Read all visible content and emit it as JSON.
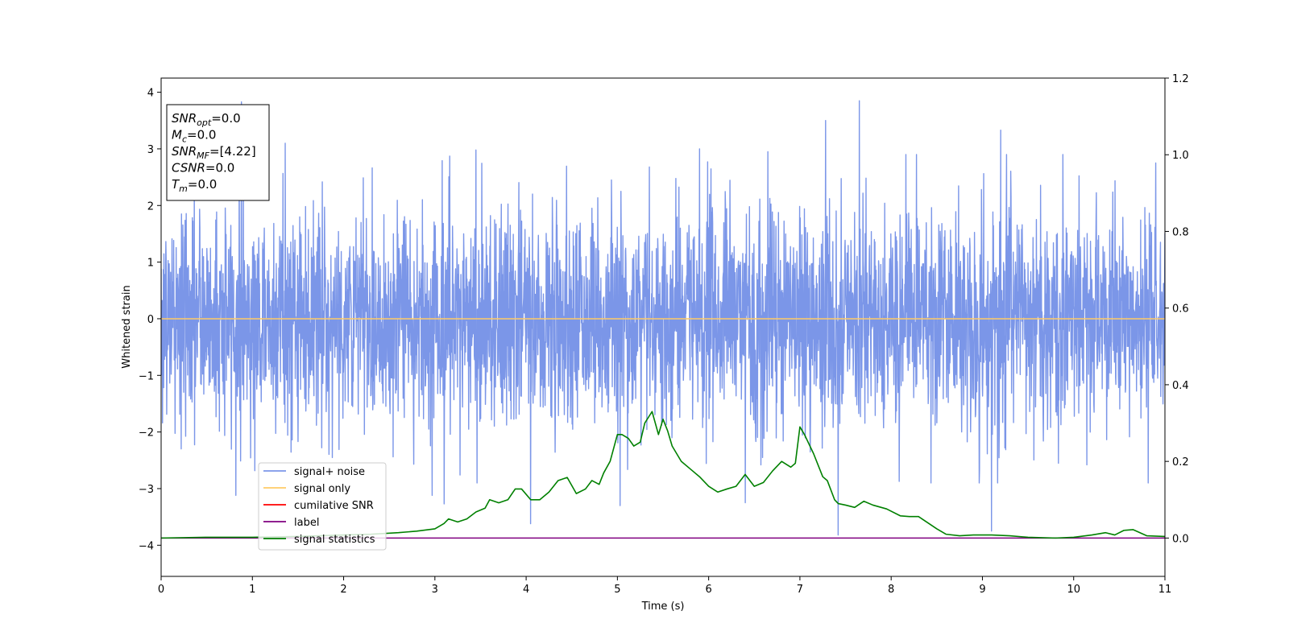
{
  "chart_data": {
    "type": "line",
    "xlabel": "Time (s)",
    "ylabel": "Whitened strain",
    "xlim": [
      0,
      11
    ],
    "ylim_left": [
      -4.55,
      4.25
    ],
    "ylim_right": [
      -0.1,
      1.2
    ],
    "x_ticks": [
      "0",
      "1",
      "2",
      "3",
      "4",
      "5",
      "6",
      "7",
      "8",
      "9",
      "10",
      "11"
    ],
    "y_ticks_left": [
      "4",
      "3",
      "2",
      "1",
      "0",
      "−1",
      "−2",
      "−3",
      "−4"
    ],
    "y_ticks_right": [
      "1.2",
      "1.0",
      "0.8",
      "0.6",
      "0.4",
      "0.2",
      "0.0"
    ],
    "grid": false,
    "legend_placement": "lower-left",
    "series": [
      {
        "name": "signal+ noise",
        "color": "#7b96e8",
        "axis": "left",
        "description_values": {
          "typical_amplitude": 1.0,
          "max_peak": 3.85,
          "min_trough": -3.82
        },
        "peaks": [
          {
            "x": 0.88,
            "y": 3.83
          },
          {
            "x": 1.36,
            "y": 3.1
          },
          {
            "x": 3.45,
            "y": 2.98
          },
          {
            "x": 5.9,
            "y": 3.0
          },
          {
            "x": 6.65,
            "y": 2.95
          },
          {
            "x": 7.28,
            "y": 3.5
          },
          {
            "x": 7.65,
            "y": 3.85
          },
          {
            "x": 9.2,
            "y": 3.33
          },
          {
            "x": 10.9,
            "y": 2.75
          }
        ],
        "troughs": [
          {
            "x": 0.82,
            "y": -3.12
          },
          {
            "x": 2.97,
            "y": -3.12
          },
          {
            "x": 3.1,
            "y": -3.27
          },
          {
            "x": 4.05,
            "y": -3.62
          },
          {
            "x": 5.03,
            "y": -3.3
          },
          {
            "x": 6.4,
            "y": -3.25
          },
          {
            "x": 7.42,
            "y": -3.82
          },
          {
            "x": 9.1,
            "y": -3.75
          }
        ]
      },
      {
        "name": "signal only",
        "color": "#ffcc66",
        "axis": "left",
        "x": [
          0,
          11
        ],
        "y": [
          0,
          0
        ]
      },
      {
        "name": "cumilative SNR",
        "color": "#ff0000",
        "axis": "right",
        "x": [
          0,
          11
        ],
        "y": [
          0,
          0
        ]
      },
      {
        "name": "label",
        "color": "#800080",
        "axis": "right",
        "x": [
          0,
          11
        ],
        "y": [
          0,
          0
        ]
      },
      {
        "name": "signal statistics",
        "color": "#008000",
        "axis": "right",
        "x": [
          0,
          0.5,
          1.0,
          1.5,
          2.0,
          2.3,
          2.6,
          2.8,
          3.0,
          3.1,
          3.15,
          3.25,
          3.35,
          3.45,
          3.55,
          3.6,
          3.7,
          3.8,
          3.88,
          3.95,
          4.05,
          4.15,
          4.25,
          4.35,
          4.45,
          4.55,
          4.65,
          4.72,
          4.8,
          4.85,
          4.92,
          5.0,
          5.05,
          5.12,
          5.18,
          5.25,
          5.3,
          5.38,
          5.45,
          5.5,
          5.55,
          5.6,
          5.7,
          5.8,
          5.9,
          6.0,
          6.1,
          6.2,
          6.3,
          6.4,
          6.5,
          6.6,
          6.7,
          6.8,
          6.9,
          6.95,
          7.0,
          7.05,
          7.15,
          7.25,
          7.3,
          7.38,
          7.42,
          7.5,
          7.6,
          7.7,
          7.8,
          7.95,
          8.1,
          8.2,
          8.3,
          8.4,
          8.5,
          8.6,
          8.75,
          8.9,
          9.1,
          9.3,
          9.5,
          9.8,
          10.0,
          10.2,
          10.35,
          10.45,
          10.55,
          10.65,
          10.8,
          11.0
        ],
        "y": [
          0.0,
          0.002,
          0.002,
          0.004,
          0.008,
          0.01,
          0.014,
          0.018,
          0.024,
          0.038,
          0.05,
          0.042,
          0.05,
          0.068,
          0.078,
          0.1,
          0.092,
          0.1,
          0.128,
          0.128,
          0.1,
          0.1,
          0.12,
          0.15,
          0.158,
          0.116,
          0.128,
          0.15,
          0.14,
          0.17,
          0.2,
          0.27,
          0.27,
          0.26,
          0.24,
          0.25,
          0.3,
          0.33,
          0.27,
          0.31,
          0.28,
          0.24,
          0.2,
          0.18,
          0.16,
          0.135,
          0.12,
          0.128,
          0.135,
          0.166,
          0.135,
          0.145,
          0.175,
          0.2,
          0.185,
          0.195,
          0.29,
          0.27,
          0.22,
          0.16,
          0.15,
          0.1,
          0.09,
          0.086,
          0.08,
          0.096,
          0.086,
          0.076,
          0.058,
          0.056,
          0.056,
          0.04,
          0.024,
          0.01,
          0.006,
          0.008,
          0.008,
          0.006,
          0.002,
          0.0,
          0.002,
          0.008,
          0.014,
          0.008,
          0.02,
          0.022,
          0.006,
          0.004
        ]
      }
    ],
    "legend": [
      {
        "label": "signal+ noise",
        "color": "#7b96e8"
      },
      {
        "label": "signal only",
        "color": "#ffcc66"
      },
      {
        "label": "cumilative SNR",
        "color": "#ff0000"
      },
      {
        "label": "label",
        "color": "#800080"
      },
      {
        "label": "signal statistics",
        "color": "#008000"
      }
    ],
    "annotation_box": {
      "placement": "top-left",
      "lines": [
        {
          "name": "SNR",
          "sub": "opt",
          "value": "=0.0"
        },
        {
          "name": "M",
          "sub": "c",
          "value": "=0.0"
        },
        {
          "name": "SNR",
          "sub": "MF",
          "value": "=[4.22]"
        },
        {
          "name": "CSNR",
          "sub": "",
          "value": "=0.0"
        },
        {
          "name": "T",
          "sub": "m",
          "value": "=0.0"
        }
      ]
    }
  }
}
